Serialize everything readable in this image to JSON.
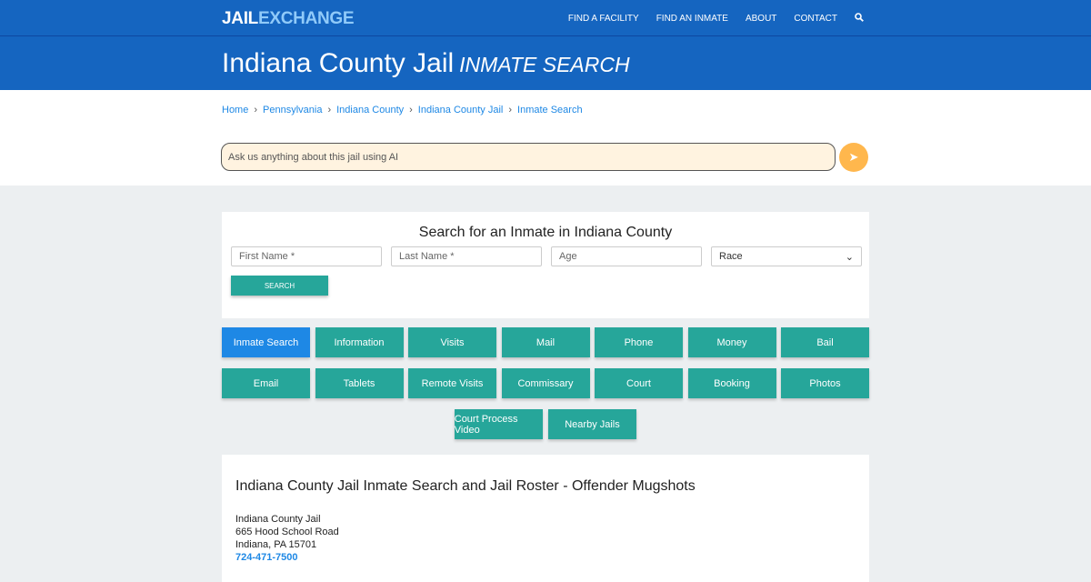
{
  "header": {
    "logo_a": "JAIL",
    "logo_b": "EXCHANGE",
    "nav": [
      "FIND A FACILITY",
      "FIND AN INMATE",
      "ABOUT",
      "CONTACT"
    ],
    "search_icon": "search-icon"
  },
  "title": {
    "main": "Indiana County Jail",
    "sub": "INMATE SEARCH"
  },
  "breadcrumb": [
    "Home",
    "Pennsylvania",
    "Indiana County",
    "Indiana County Jail",
    "Inmate Search"
  ],
  "ai": {
    "placeholder": "Ask us anything about this jail using AI",
    "send_icon": "paper-plane-icon"
  },
  "search": {
    "heading": "Search for an Inmate in Indiana County",
    "first": "First Name *",
    "last": "Last Name *",
    "age": "Age",
    "race": "Race",
    "button": "SEARCH"
  },
  "buttons": {
    "row1": [
      "Inmate Search",
      "Information",
      "Visits",
      "Mail",
      "Phone",
      "Money",
      "Bail"
    ],
    "row2": [
      "Email",
      "Tablets",
      "Remote Visits",
      "Commissary",
      "Court",
      "Booking",
      "Photos"
    ],
    "row3": [
      "Court Process Video",
      "Nearby Jails"
    ]
  },
  "content": {
    "heading": "Indiana County Jail Inmate Search and Jail Roster - Offender Mugshots",
    "name": "Indiana County Jail",
    "street": "665 Hood School Road",
    "city": "Indiana, PA 15701",
    "phone": "724-471-7500"
  },
  "colors": {
    "primary": "#1565c0",
    "teal": "#26a69a",
    "active": "#1e88e5",
    "send": "#ffb74d"
  }
}
